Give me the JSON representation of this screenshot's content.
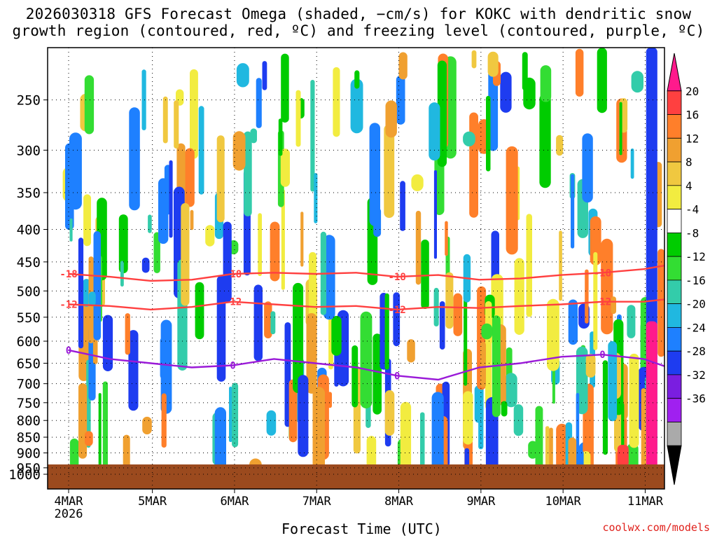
{
  "title_line1": "2026030318 GFS Forecast Omega (shaded, −cm/s) for KOKC with dendritic snow",
  "title_line2": "growth region (contoured, red, ºC) and freezing level (contoured, purple, ºC)",
  "credit": "coolwx.com/models",
  "chart_data": {
    "type": "heatmap",
    "title": "2026030318 GFS Forecast Omega (shaded, −cm/s) for KOKC with dendritic snow growth region (contoured, red, ºC) and freezing level (contoured, purple, ºC)",
    "xlabel": "Forecast Time (UTC)",
    "ylabel": "",
    "x_ticks": [
      "4MAR",
      "5MAR",
      "6MAR",
      "7MAR",
      "8MAR",
      "9MAR",
      "10MAR",
      "11MAR"
    ],
    "x_year_label": "2026",
    "y_ticks": [
      250,
      300,
      350,
      400,
      450,
      500,
      550,
      600,
      650,
      700,
      750,
      800,
      850,
      900,
      950,
      1000
    ],
    "ylim": [
      1000,
      200
    ],
    "y_scale": "log-pressure",
    "grid": true,
    "colorbar": {
      "ticks": [
        20,
        16,
        12,
        8,
        4,
        -4,
        -8,
        -12,
        -16,
        -20,
        -24,
        -28,
        -32,
        -36
      ],
      "colors": [
        "#ff1a8c",
        "#ff4040",
        "#ff7f2a",
        "#f0a030",
        "#f0c840",
        "#f2ec40",
        "#ffffff",
        "#00cc00",
        "#33dd33",
        "#33ccaa",
        "#20b8e0",
        "#1e80ff",
        "#1e3cf0",
        "#7a1ee0",
        "#a020f0",
        "#aaaaaa",
        "#000000"
      ]
    },
    "contours": [
      {
        "name": "-18",
        "color": "#ff4040",
        "x": [
          0.0,
          0.5,
          1.0,
          1.5,
          2.0,
          2.5,
          3.0,
          3.5,
          4.0,
          4.5,
          5.0,
          5.5,
          6.0,
          6.5,
          7.0,
          7.3
        ],
        "y": [
          470,
          475,
          482,
          480,
          470,
          468,
          470,
          468,
          475,
          472,
          480,
          478,
          472,
          468,
          462,
          455
        ]
      },
      {
        "name": "-12",
        "color": "#ff4040",
        "x": [
          0.0,
          0.5,
          1.0,
          1.5,
          2.0,
          2.5,
          3.0,
          3.5,
          4.0,
          4.5,
          5.0,
          5.5,
          6.0,
          6.5,
          7.0,
          7.3
        ],
        "y": [
          525,
          528,
          535,
          530,
          520,
          525,
          530,
          528,
          535,
          530,
          532,
          528,
          525,
          520,
          520,
          515
        ]
      },
      {
        "name": "0",
        "color": "#9a1ad8",
        "x": [
          0.0,
          0.5,
          1.0,
          1.5,
          2.0,
          2.5,
          3.0,
          3.5,
          4.0,
          4.5,
          5.0,
          5.5,
          6.0,
          6.5,
          7.0,
          7.3
        ],
        "y": [
          620,
          640,
          650,
          660,
          655,
          640,
          650,
          660,
          680,
          690,
          660,
          650,
          635,
          630,
          640,
          660
        ]
      }
    ]
  }
}
